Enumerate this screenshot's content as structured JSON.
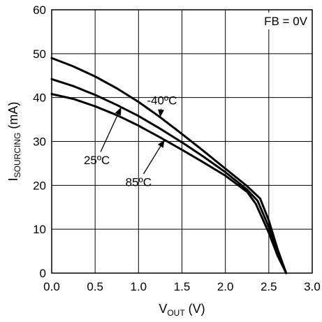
{
  "chart_data": {
    "type": "line",
    "title": "",
    "xlabel": {
      "main": "V",
      "sub": "OUT",
      "unit": " (V)"
    },
    "ylabel": {
      "main": "I",
      "sub": "SOURCING",
      "unit": " (mA)"
    },
    "xlim": [
      0,
      3
    ],
    "ylim": [
      0,
      60
    ],
    "xticks": [
      "0.0",
      "0.5",
      "1.0",
      "1.5",
      "2.0",
      "2.5",
      "3.0"
    ],
    "yticks": [
      "0",
      "10",
      "20",
      "30",
      "40",
      "50",
      "60"
    ],
    "grid": true,
    "condition_label": "FB = 0V",
    "series": [
      {
        "name": "-40ºC",
        "x": [
          0,
          0.25,
          0.5,
          0.75,
          1.0,
          1.25,
          1.5,
          1.75,
          2.0,
          2.25,
          2.4,
          2.5,
          2.6,
          2.7
        ],
        "y": [
          49,
          47.1,
          44.8,
          42.1,
          39.0,
          35.5,
          31.7,
          27.8,
          23.8,
          19.8,
          17.0,
          12.0,
          5.5,
          0
        ]
      },
      {
        "name": "25ºC",
        "x": [
          0,
          0.25,
          0.5,
          0.75,
          1.0,
          1.25,
          1.5,
          1.75,
          2.0,
          2.25,
          2.37,
          2.5,
          2.6,
          2.7
        ],
        "y": [
          44.2,
          42.6,
          40.6,
          38.3,
          35.8,
          32.9,
          29.8,
          26.5,
          23.0,
          19.0,
          16.5,
          10.5,
          4.8,
          0
        ]
      },
      {
        "name": "85ºC",
        "x": [
          0,
          0.25,
          0.5,
          0.75,
          1.0,
          1.25,
          1.5,
          1.75,
          2.0,
          2.25,
          2.35,
          2.5,
          2.6,
          2.7
        ],
        "y": [
          40.8,
          39.7,
          38.0,
          36.0,
          33.6,
          30.9,
          28.1,
          25.2,
          22.2,
          18.5,
          15.8,
          9.2,
          4.0,
          0
        ]
      }
    ],
    "annotations": [
      {
        "series": "-40ºC",
        "text": "-40ºC",
        "at": [
          1.27,
          38.4
        ],
        "point": [
          1.25,
          35.5
        ],
        "anchor": "middle"
      },
      {
        "series": "25ºC",
        "text": "25ºC",
        "at": [
          0.52,
          24.8
        ],
        "point": [
          0.8,
          37.8
        ],
        "anchor": "middle"
      },
      {
        "series": "85ºC",
        "text": "85ºC",
        "at": [
          1.0,
          19.8
        ],
        "point": [
          1.3,
          30.4
        ],
        "anchor": "middle"
      }
    ]
  }
}
